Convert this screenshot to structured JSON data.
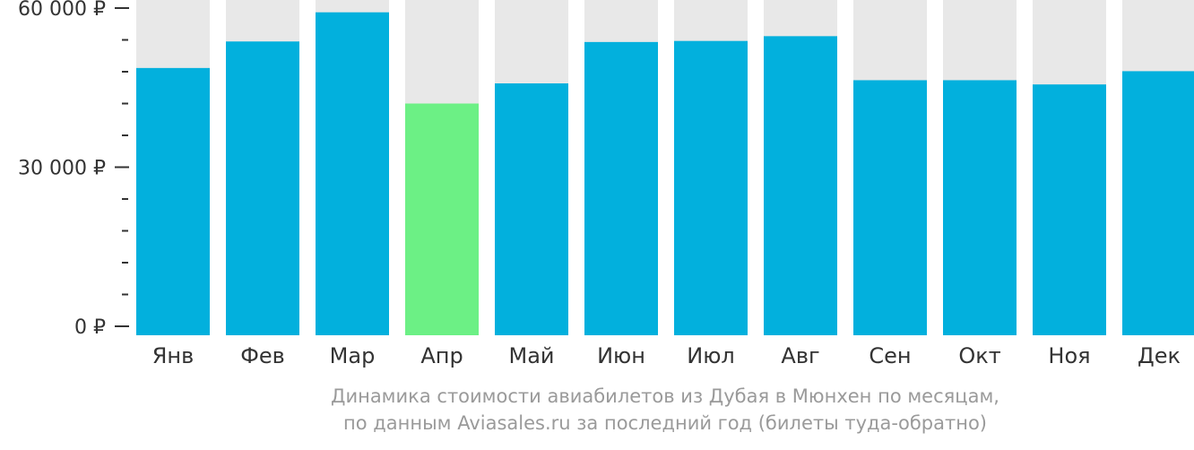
{
  "chart_data": {
    "type": "bar",
    "categories": [
      "Янв",
      "Фев",
      "Мар",
      "Апр",
      "Май",
      "Июн",
      "Июл",
      "Авг",
      "Сен",
      "Окт",
      "Ноя",
      "Дек"
    ],
    "values": [
      48700,
      53700,
      59200,
      42000,
      45800,
      53600,
      53800,
      54700,
      46400,
      46400,
      45600,
      48100
    ],
    "highlight_index": 3,
    "ylim": [
      0,
      62000
    ],
    "yticks": [
      {
        "value": 60000,
        "label": "60 000 ₽"
      },
      {
        "value": 30000,
        "label": "30 000 ₽"
      },
      {
        "value": 0,
        "label": "0 ₽"
      }
    ],
    "minor_tick_step": 6000,
    "title": "",
    "xlabel": "",
    "ylabel": "",
    "grid": false
  },
  "colors": {
    "bar": "#02b0dd",
    "highlight": "#6cf085",
    "background_bar": "#e8e8e8",
    "axis": "#333333"
  },
  "caption": {
    "line1": "Динамика стоимости авиабилетов из Дубая в Мюнхен по месяцам,",
    "line2": "по данным Aviasales.ru за последний год (билеты туда-обратно)"
  }
}
